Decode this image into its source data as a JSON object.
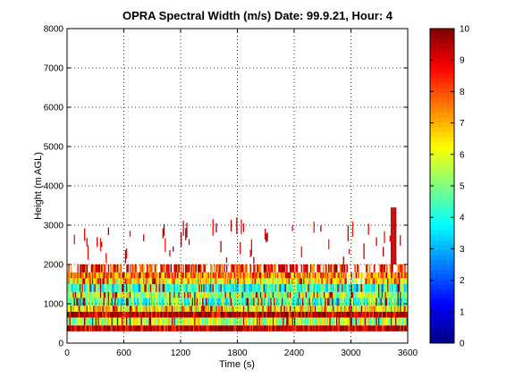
{
  "chart_data": {
    "type": "heatmap",
    "title": "OPRA Spectral Width (m/s)  Date: 99.9.21, Hour: 4",
    "xlabel": "Time (s)",
    "ylabel": "Height (m AGL)",
    "xlim": [
      0,
      3600
    ],
    "ylim": [
      0,
      8000
    ],
    "xticks": [
      0,
      600,
      1200,
      1800,
      2400,
      3000,
      3600
    ],
    "yticks": [
      0,
      1000,
      2000,
      3000,
      4000,
      5000,
      6000,
      7000,
      8000
    ],
    "grid": true,
    "colormap": "jet",
    "colorbar": {
      "min": 0,
      "max": 10,
      "ticks": [
        0,
        1,
        2,
        3,
        4,
        5,
        6,
        7,
        8,
        9,
        10
      ]
    },
    "layers": [
      {
        "bottom": 300,
        "top": 450,
        "value": 9.5
      },
      {
        "bottom": 450,
        "top": 650,
        "value": 5.5
      },
      {
        "bottom": 650,
        "top": 800,
        "value": 9.3
      },
      {
        "bottom": 800,
        "top": 950,
        "value": 6.5
      },
      {
        "bottom": 950,
        "top": 1150,
        "value": 4.5
      },
      {
        "bottom": 1150,
        "top": 1300,
        "value": 5.5
      },
      {
        "bottom": 1300,
        "top": 1500,
        "value": 4.3
      },
      {
        "bottom": 1500,
        "top": 1650,
        "value": 6.5
      },
      {
        "bottom": 1650,
        "top": 1800,
        "value": 7.5
      },
      {
        "bottom": 1800,
        "top": 2000,
        "value": 8.5
      }
    ],
    "sparse_echoes": {
      "bottom": 2000,
      "top": 3000,
      "value": 9.0
    },
    "gap_region": {
      "start": 2950,
      "end": 3150
    },
    "late_plume": {
      "start": 3420,
      "end": 3480,
      "top": 3450,
      "value": 9.3
    }
  }
}
